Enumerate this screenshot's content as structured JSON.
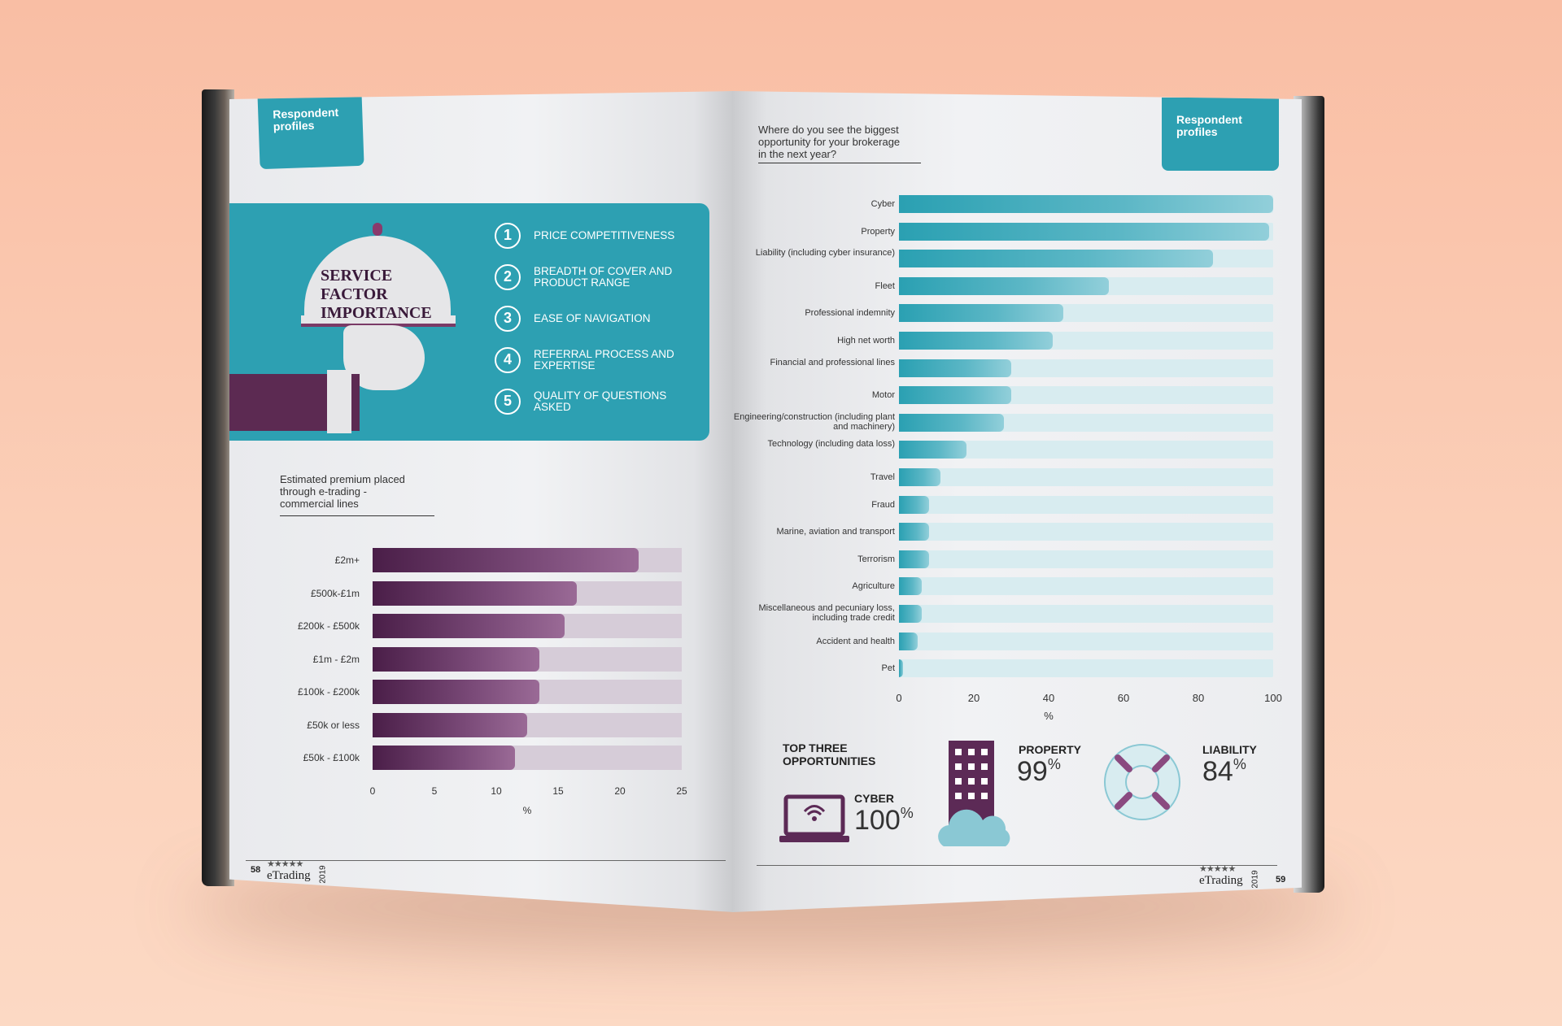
{
  "left_page": {
    "tag": "Respondent profiles",
    "panel": {
      "title": "SERVICE FACTOR IMPORTANCE",
      "factors": [
        {
          "num": "1",
          "label": "PRICE COMPETITIVENESS"
        },
        {
          "num": "2",
          "label": "BREADTH OF COVER AND PRODUCT RANGE"
        },
        {
          "num": "3",
          "label": "EASE OF NAVIGATION"
        },
        {
          "num": "4",
          "label": "REFERRAL PROCESS AND EXPERTISE"
        },
        {
          "num": "5",
          "label": "QUALITY OF QUESTIONS ASKED"
        }
      ]
    },
    "chart_caption": "Estimated premium placed through e-trading - commercial lines",
    "page_number": "58",
    "brand": "eTrading",
    "year": "2019"
  },
  "right_page": {
    "tag": "Respondent profiles",
    "chart_caption": "Where do you see the biggest opportunity for your brokerage in the next year?",
    "top_three": {
      "heading": "TOP THREE OPPORTUNITIES",
      "items": [
        {
          "label": "CYBER",
          "value": "100",
          "unit": "%"
        },
        {
          "label": "PROPERTY",
          "value": "99",
          "unit": "%"
        },
        {
          "label": "LIABILITY",
          "value": "84",
          "unit": "%"
        }
      ]
    },
    "page_number": "59",
    "brand": "eTrading",
    "year": "2019"
  },
  "chart_data": [
    {
      "type": "bar",
      "orientation": "horizontal",
      "categories": [
        "£2m+",
        "£500k-£1m",
        "£200k - £500k",
        "£1m - £2m",
        "£100k - £200k",
        "£50k or less",
        "£50k - £100k"
      ],
      "values": [
        21.5,
        16.5,
        15.5,
        13.5,
        13.5,
        12.5,
        11.5
      ],
      "xlabel": "%",
      "xlim": [
        0,
        25
      ],
      "xticks": [
        "0",
        "5",
        "10",
        "15",
        "20",
        "25"
      ],
      "colors": {
        "bar": "#5c2a56",
        "track": "#d6ccd8"
      }
    },
    {
      "type": "bar",
      "orientation": "horizontal",
      "categories": [
        "Cyber",
        "Property",
        "Liability (including cyber insurance)",
        "Fleet",
        "Professional indemnity",
        "High net worth",
        "Financial and professional lines",
        "Motor",
        "Engineering/construction (including plant and machinery)",
        "Technology (including data loss)",
        "Travel",
        "Fraud",
        "Marine, aviation and transport",
        "Terrorism",
        "Agriculture",
        "Miscellaneous and pecuniary loss, including trade credit",
        "Accident and health",
        "Pet"
      ],
      "values": [
        100,
        99,
        84,
        56,
        44,
        41,
        30,
        30,
        28,
        18,
        11,
        8,
        8,
        8,
        6,
        6,
        5,
        1
      ],
      "xlabel": "%",
      "xlim": [
        0,
        100
      ],
      "xticks": [
        "0",
        "20",
        "40",
        "60",
        "80",
        "100"
      ],
      "colors": {
        "bar": "#2aa0b2",
        "track": "#d8ecf0"
      }
    }
  ]
}
